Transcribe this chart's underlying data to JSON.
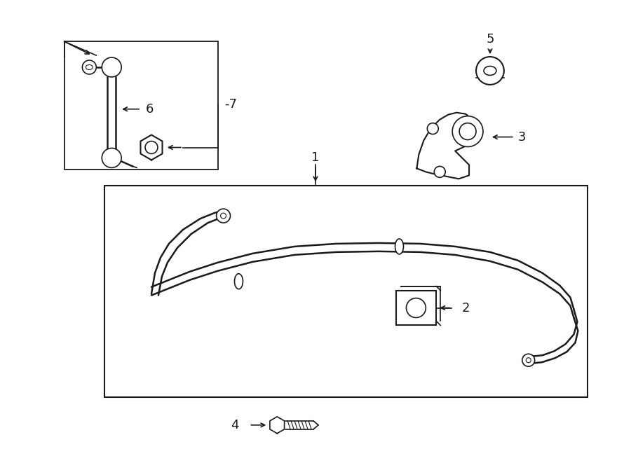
{
  "bg_color": "#ffffff",
  "line_color": "#1a1a1a",
  "fig_width": 9.0,
  "fig_height": 6.61,
  "dpi": 100,
  "font_size": 13,
  "font_size_sm": 11
}
